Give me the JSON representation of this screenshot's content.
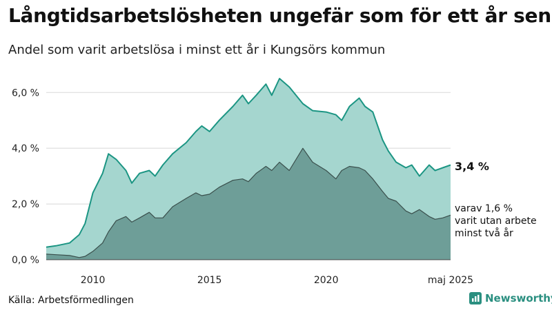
{
  "header": {
    "title": "Långtidsarbetslösheten ungefär som för ett år sen",
    "subtitle": "Andel som varit arbetslösa i minst ett år i Kungsörs kommun"
  },
  "footer": {
    "source": "Källa: Arbetsförmedlingen",
    "brand": "Newsworthy"
  },
  "colors": {
    "area_light": "#a5d6cf",
    "line_light": "#1b9583",
    "area_dark": "#6e9e98",
    "line_dark": "#3a4f4c",
    "grid": "#d8d8d8",
    "brand": "#2a8f80"
  },
  "chart_data": {
    "type": "area",
    "x_unit": "date (yyyy-mm)",
    "ylim": [
      0,
      6.6
    ],
    "yticks": [
      0,
      2,
      4,
      6
    ],
    "ytick_labels": [
      "0,0 %",
      "2,0 %",
      "4,0 %",
      "6,0 %"
    ],
    "xticks": [
      "2010-01",
      "2015-01",
      "2020-01",
      "2025-05"
    ],
    "xtick_labels": [
      "2010",
      "2015",
      "2020",
      "maj 2025"
    ],
    "grid": true,
    "end_labels": {
      "total": "3,4 %",
      "long": [
        "varav 1,6 %",
        "varit utan arbete",
        "minst två år"
      ]
    },
    "series": [
      {
        "role": "total",
        "points": [
          [
            "2008-01",
            0.45
          ],
          [
            "2008-06",
            0.5
          ],
          [
            "2009-01",
            0.6
          ],
          [
            "2009-06",
            0.9
          ],
          [
            "2009-09",
            1.3
          ],
          [
            "2010-01",
            2.4
          ],
          [
            "2010-06",
            3.1
          ],
          [
            "2010-09",
            3.8
          ],
          [
            "2011-01",
            3.6
          ],
          [
            "2011-06",
            3.2
          ],
          [
            "2011-09",
            2.75
          ],
          [
            "2012-01",
            3.1
          ],
          [
            "2012-06",
            3.2
          ],
          [
            "2012-09",
            3.0
          ],
          [
            "2013-01",
            3.4
          ],
          [
            "2013-06",
            3.8
          ],
          [
            "2014-01",
            4.2
          ],
          [
            "2014-06",
            4.6
          ],
          [
            "2014-09",
            4.8
          ],
          [
            "2015-01",
            4.6
          ],
          [
            "2015-06",
            5.0
          ],
          [
            "2016-01",
            5.5
          ],
          [
            "2016-06",
            5.9
          ],
          [
            "2016-09",
            5.6
          ],
          [
            "2017-01",
            5.9
          ],
          [
            "2017-06",
            6.3
          ],
          [
            "2017-09",
            5.9
          ],
          [
            "2018-01",
            6.5
          ],
          [
            "2018-06",
            6.2
          ],
          [
            "2019-01",
            5.6
          ],
          [
            "2019-06",
            5.35
          ],
          [
            "2020-01",
            5.3
          ],
          [
            "2020-06",
            5.2
          ],
          [
            "2020-09",
            5.0
          ],
          [
            "2021-01",
            5.5
          ],
          [
            "2021-06",
            5.8
          ],
          [
            "2021-09",
            5.5
          ],
          [
            "2022-01",
            5.3
          ],
          [
            "2022-06",
            4.3
          ],
          [
            "2022-09",
            3.9
          ],
          [
            "2023-01",
            3.5
          ],
          [
            "2023-06",
            3.3
          ],
          [
            "2023-09",
            3.4
          ],
          [
            "2024-01",
            3.0
          ],
          [
            "2024-06",
            3.4
          ],
          [
            "2024-09",
            3.2
          ],
          [
            "2025-01",
            3.3
          ],
          [
            "2025-05",
            3.4
          ]
        ]
      },
      {
        "role": "long",
        "points": [
          [
            "2008-01",
            0.2
          ],
          [
            "2008-06",
            0.18
          ],
          [
            "2009-01",
            0.15
          ],
          [
            "2009-06",
            0.08
          ],
          [
            "2009-09",
            0.12
          ],
          [
            "2010-01",
            0.3
          ],
          [
            "2010-06",
            0.6
          ],
          [
            "2010-09",
            1.0
          ],
          [
            "2011-01",
            1.4
          ],
          [
            "2011-06",
            1.55
          ],
          [
            "2011-09",
            1.35
          ],
          [
            "2012-01",
            1.5
          ],
          [
            "2012-06",
            1.7
          ],
          [
            "2012-09",
            1.5
          ],
          [
            "2013-01",
            1.5
          ],
          [
            "2013-06",
            1.9
          ],
          [
            "2014-01",
            2.2
          ],
          [
            "2014-06",
            2.4
          ],
          [
            "2014-09",
            2.3
          ],
          [
            "2015-01",
            2.35
          ],
          [
            "2015-06",
            2.6
          ],
          [
            "2016-01",
            2.85
          ],
          [
            "2016-06",
            2.9
          ],
          [
            "2016-09",
            2.8
          ],
          [
            "2017-01",
            3.1
          ],
          [
            "2017-06",
            3.35
          ],
          [
            "2017-09",
            3.2
          ],
          [
            "2018-01",
            3.5
          ],
          [
            "2018-06",
            3.2
          ],
          [
            "2019-01",
            4.0
          ],
          [
            "2019-06",
            3.5
          ],
          [
            "2020-01",
            3.2
          ],
          [
            "2020-06",
            2.9
          ],
          [
            "2020-09",
            3.2
          ],
          [
            "2021-01",
            3.35
          ],
          [
            "2021-06",
            3.3
          ],
          [
            "2021-09",
            3.2
          ],
          [
            "2022-01",
            2.9
          ],
          [
            "2022-06",
            2.45
          ],
          [
            "2022-09",
            2.2
          ],
          [
            "2023-01",
            2.1
          ],
          [
            "2023-06",
            1.75
          ],
          [
            "2023-09",
            1.65
          ],
          [
            "2024-01",
            1.8
          ],
          [
            "2024-06",
            1.55
          ],
          [
            "2024-09",
            1.45
          ],
          [
            "2025-01",
            1.5
          ],
          [
            "2025-05",
            1.6
          ]
        ]
      }
    ]
  }
}
